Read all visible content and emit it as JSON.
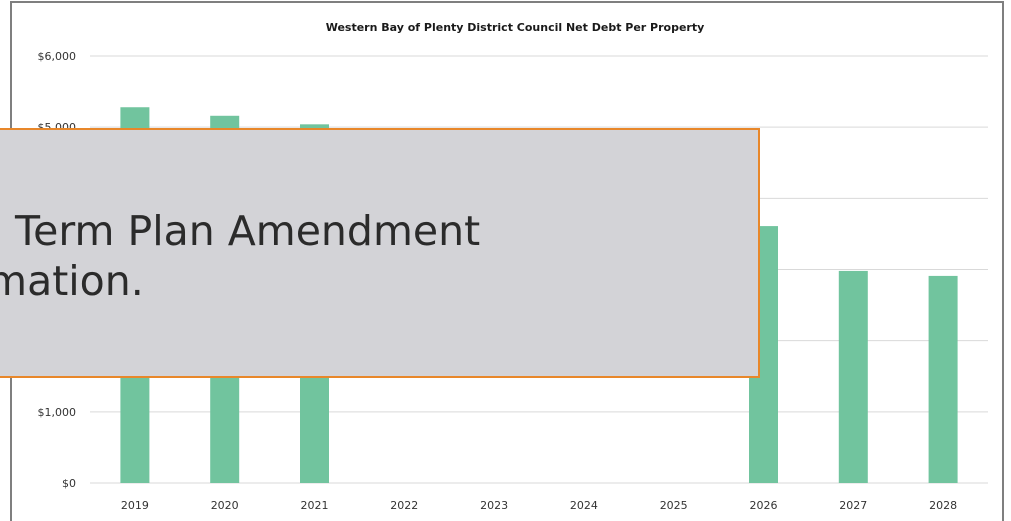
{
  "overlay": {
    "line1": "g Term Plan Amendment",
    "line2": "rmation."
  },
  "colors": {
    "bar": "#71c49e",
    "grid": "#d9d9d9",
    "frame": "#7f7f7f",
    "overlay_bg": "#d3d3d7",
    "overlay_border": "#e8872a"
  },
  "chart_data": {
    "type": "bar",
    "title": "Western Bay of Plenty District Council Net Debt Per Property",
    "xlabel": "",
    "ylabel": "",
    "categories": [
      "2019",
      "2020",
      "2021",
      "2022",
      "2023",
      "2024",
      "2025",
      "2026",
      "2027",
      "2028"
    ],
    "values": [
      5280,
      5160,
      5040,
      null,
      null,
      null,
      null,
      3610,
      2980,
      2910
    ],
    "ylim": [
      0,
      6000
    ],
    "yticks": [
      {
        "value": 0,
        "label": "$0"
      },
      {
        "value": 1000,
        "label": "$1,000"
      },
      {
        "value": 2000,
        "label": ""
      },
      {
        "value": 3000,
        "label": ""
      },
      {
        "value": 4000,
        "label": ""
      },
      {
        "value": 5000,
        "label": "$5,000"
      },
      {
        "value": 6000,
        "label": "$6,000"
      }
    ],
    "grid": true,
    "legend": "none"
  }
}
